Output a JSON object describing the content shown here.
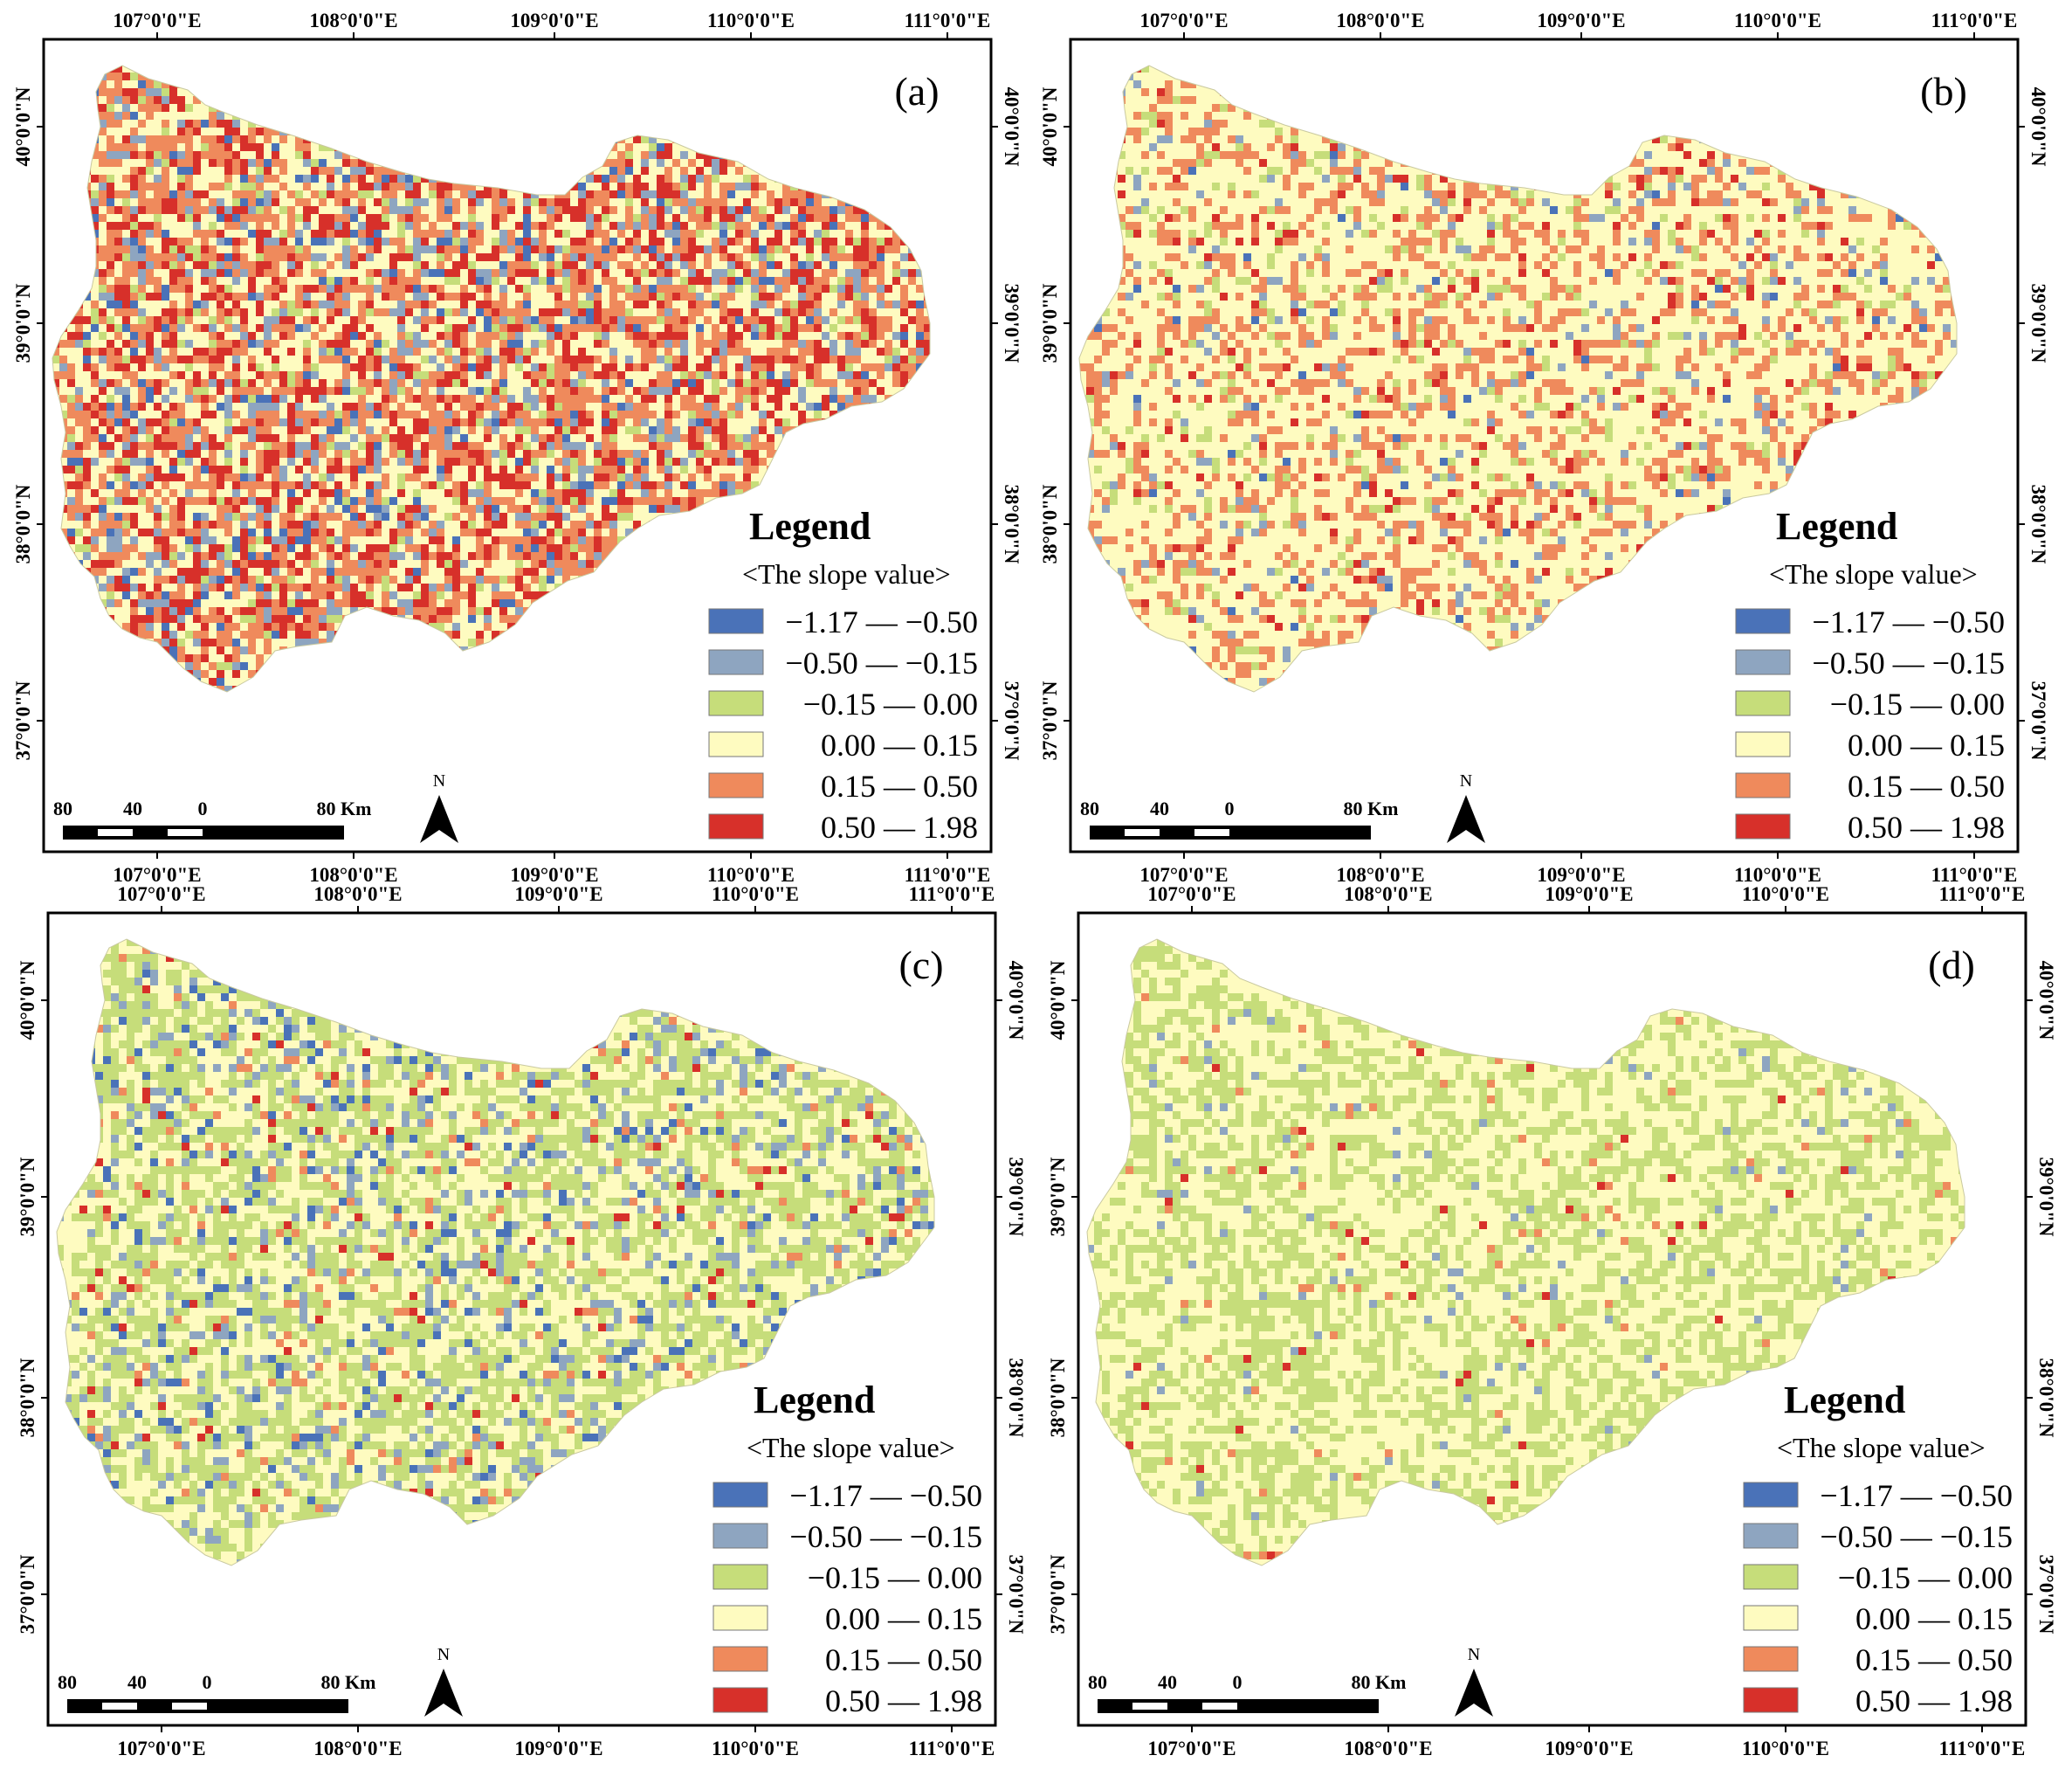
{
  "panels": [
    {
      "letter": "(a)",
      "trend_colors": {
        "-1.17": 0.05,
        "-0.50": 0.1,
        "-0.15": 0.06,
        "0.00": 0.3,
        "0.15": 0.27,
        "0.50": 0.22
      }
    },
    {
      "letter": "(b)",
      "trend_colors": {
        "-1.17": 0.01,
        "-0.50": 0.04,
        "-0.15": 0.06,
        "0.00": 0.61,
        "0.15": 0.24,
        "0.50": 0.04
      }
    },
    {
      "letter": "(c)",
      "trend_colors": {
        "-1.17": 0.04,
        "-0.50": 0.1,
        "-0.15": 0.4,
        "0.00": 0.4,
        "0.15": 0.04,
        "0.50": 0.02
      }
    },
    {
      "letter": "(d)",
      "trend_colors": {
        "-1.17": 0.0,
        "-0.50": 0.02,
        "-0.15": 0.4,
        "0.00": 0.56,
        "0.15": 0.015,
        "0.50": 0.005
      }
    }
  ],
  "graticule": {
    "lon_labels": [
      "107°0'0\"E",
      "108°0'0\"E",
      "109°0'0\"E",
      "110°0'0\"E",
      "111°0'0\"E"
    ],
    "lat_labels": [
      "40°0'0\"N",
      "39°0'0\"N",
      "38°0'0\"N",
      "37°0'0\"N"
    ]
  },
  "legend": {
    "title": "Legend",
    "subtitle": "<The slope value>",
    "classes": [
      {
        "label": "−1.17 — −0.50",
        "color": "#4a72b8"
      },
      {
        "label": "−0.50 — −0.15",
        "color": "#8ea5c0"
      },
      {
        "label": "−0.15 —   0.00",
        "color": "#c6dd7a"
      },
      {
        "label": "0.00 —   0.15",
        "color": "#fefbc0"
      },
      {
        "label": "0.15 —   0.50",
        "color": "#ef8a5c"
      },
      {
        "label": "0.50 —   1.98",
        "color": "#d7302a"
      }
    ]
  },
  "scalebar": {
    "labels": [
      "80",
      "40",
      "0",
      "80 Km"
    ]
  },
  "north": {
    "label": "N"
  }
}
